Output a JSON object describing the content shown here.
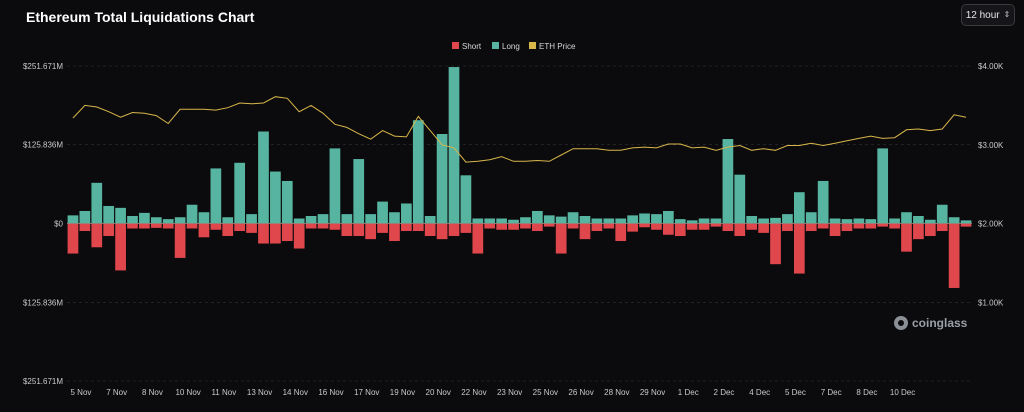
{
  "title": "Ethereum Total Liquidations Chart",
  "interval_select": {
    "value": "12 hour",
    "icon": "chevron-updown-icon"
  },
  "watermark": "coinglass",
  "colors": {
    "short": "#e0474c",
    "long": "#56b4a0",
    "eth": "#d9b64a",
    "grid": "#3a3a3e",
    "zero": "#9a9a9a"
  },
  "chart_data": {
    "type": "bar",
    "title": "Ethereum Total Liquidations Chart",
    "legend": {
      "position": "top-center",
      "entries": [
        "Short",
        "Long",
        "ETH Price"
      ]
    },
    "grid": true,
    "y_left": {
      "ticks": [
        251.671,
        125.836,
        0,
        -125.836,
        -251.671
      ],
      "tick_labels": [
        "$251.671M",
        "$125.836M",
        "$0",
        "$125.836M",
        "$251.671M"
      ],
      "range": [
        -251.671,
        251.671
      ],
      "unit": "M USD"
    },
    "y_right": {
      "ticks": [
        4000,
        3000,
        2000,
        1000
      ],
      "tick_labels": [
        "$4.00K",
        "$3.00K",
        "$2.00K",
        "$1.00K"
      ],
      "range": [
        0,
        4000
      ]
    },
    "x_tick_labels": [
      "5 Nov",
      "7 Nov",
      "8 Nov",
      "10 Nov",
      "11 Nov",
      "13 Nov",
      "14 Nov",
      "16 Nov",
      "17 Nov",
      "19 Nov",
      "20 Nov",
      "22 Nov",
      "23 Nov",
      "25 Nov",
      "26 Nov",
      "28 Nov",
      "29 Nov",
      "1 Dec",
      "2 Dec",
      "4 Dec",
      "5 Dec",
      "7 Dec",
      "8 Dec",
      "10 Dec"
    ],
    "x_tick_index": [
      0,
      3,
      6,
      9,
      12,
      15,
      18,
      21,
      24,
      27,
      30,
      33,
      36,
      39,
      42,
      45,
      48,
      51,
      54,
      57,
      60,
      63,
      66,
      69
    ],
    "series": [
      {
        "name": "Long",
        "values": [
          13,
          20,
          65,
          28,
          25,
          12,
          17,
          10,
          7,
          10,
          30,
          18,
          88,
          10,
          97,
          15,
          147,
          83,
          68,
          8,
          12,
          15,
          120,
          15,
          103,
          15,
          35,
          18,
          32,
          165,
          12,
          143,
          250,
          77,
          8,
          8,
          8,
          6,
          10,
          20,
          13,
          11,
          18,
          12,
          8,
          8,
          8,
          13,
          16,
          15,
          20,
          7,
          5,
          8,
          8,
          135,
          78,
          12,
          8,
          9,
          15,
          50,
          18,
          68,
          8,
          7,
          8,
          7,
          120,
          8,
          18,
          12,
          6,
          30,
          10,
          5
        ],
        "note": "12-hour buckets from 5 Nov to 10 Dec, $M"
      },
      {
        "name": "Short",
        "values": [
          48,
          12,
          38,
          20,
          75,
          8,
          8,
          7,
          8,
          55,
          8,
          22,
          10,
          20,
          12,
          15,
          32,
          32,
          28,
          40,
          8,
          8,
          10,
          20,
          20,
          25,
          15,
          28,
          12,
          12,
          20,
          25,
          20,
          15,
          48,
          8,
          10,
          10,
          8,
          12,
          5,
          48,
          8,
          25,
          12,
          8,
          28,
          13,
          6,
          10,
          18,
          20,
          10,
          10,
          5,
          12,
          20,
          10,
          15,
          65,
          12,
          80,
          12,
          8,
          20,
          12,
          8,
          8,
          5,
          8,
          45,
          25,
          20,
          12,
          103,
          5
        ]
      },
      {
        "name": "ETH Price",
        "values": [
          3340,
          3500,
          3480,
          3420,
          3350,
          3410,
          3400,
          3370,
          3270,
          3450,
          3450,
          3450,
          3440,
          3470,
          3530,
          3520,
          3530,
          3610,
          3590,
          3420,
          3500,
          3400,
          3260,
          3220,
          3140,
          3070,
          3180,
          3110,
          3100,
          3360,
          3180,
          3000,
          2960,
          2780,
          2790,
          2810,
          2850,
          2790,
          2790,
          2800,
          2790,
          2870,
          2950,
          2950,
          2950,
          2930,
          2930,
          2960,
          2970,
          2960,
          3010,
          3010,
          2960,
          2970,
          2930,
          2970,
          2990,
          2930,
          2950,
          2930,
          2990,
          2990,
          3020,
          2990,
          3020,
          3050,
          3080,
          3110,
          3080,
          3090,
          3190,
          3200,
          3180,
          3200,
          3380,
          3350
        ]
      }
    ]
  }
}
